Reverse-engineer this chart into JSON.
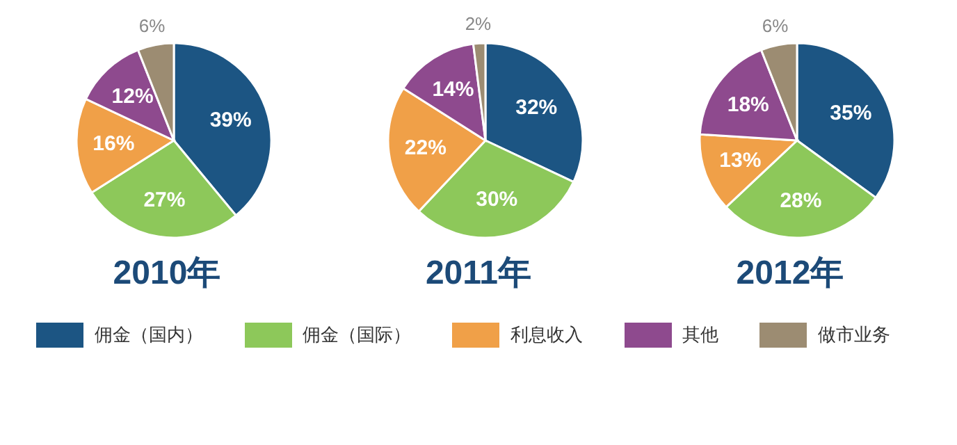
{
  "chart_data": [
    {
      "type": "pie",
      "title": "2010年",
      "categories": [
        "佣金（国内）",
        "佣金（国际）",
        "利息收入",
        "其他",
        "做市业务"
      ],
      "values": [
        39,
        27,
        16,
        12,
        6
      ],
      "value_labels": [
        "39%",
        "27%",
        "16%",
        "12%",
        "6%"
      ],
      "colors": [
        "#1c5583",
        "#8dc85a",
        "#f0a048",
        "#8e4a8e",
        "#9c8c72"
      ],
      "legend": "bottom"
    },
    {
      "type": "pie",
      "title": "2011年",
      "values": [
        32,
        30,
        22,
        14,
        2
      ],
      "value_labels": [
        "32%",
        "30%",
        "22%",
        "14%",
        "2%"
      ],
      "colors": [
        "#1c5583",
        "#8dc85a",
        "#f0a048",
        "#8e4a8e",
        "#9c8c72"
      ]
    },
    {
      "type": "pie",
      "title": "2012年",
      "values": [
        35,
        28,
        13,
        18,
        6
      ],
      "value_labels": [
        "35%",
        "28%",
        "13%",
        "18%",
        "6%"
      ],
      "colors": [
        "#1c5583",
        "#8dc85a",
        "#f0a048",
        "#8e4a8e",
        "#9c8c72"
      ]
    }
  ]
}
